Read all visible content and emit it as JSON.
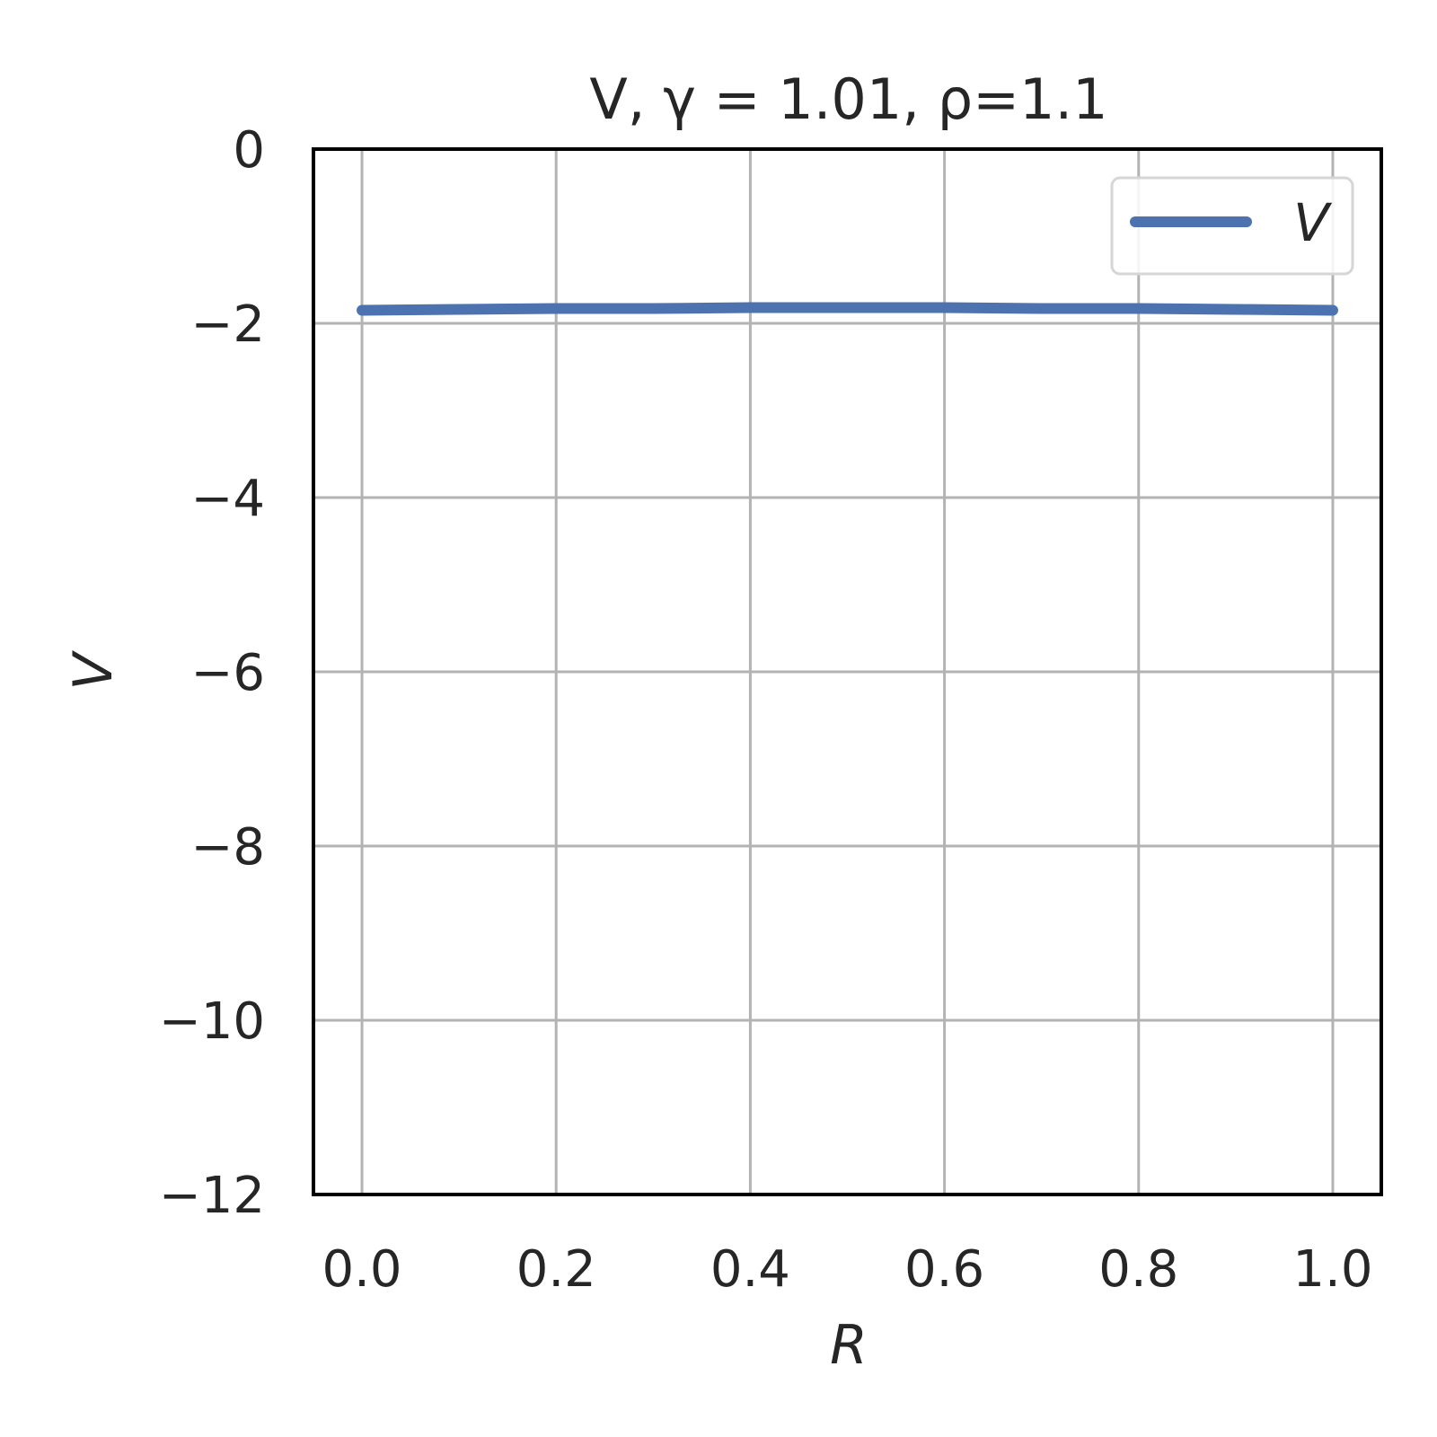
{
  "chart_data": {
    "type": "line",
    "title": "V, γ = 1.01, ρ=1.1",
    "xlabel": "R",
    "ylabel": "V",
    "xlim": [
      -0.05,
      1.05
    ],
    "ylim": [
      -12,
      0
    ],
    "xticks": [
      0.0,
      0.2,
      0.4,
      0.6,
      0.8,
      1.0
    ],
    "xtick_labels": [
      "0.0",
      "0.2",
      "0.4",
      "0.6",
      "0.8",
      "1.0"
    ],
    "yticks": [
      0,
      -2,
      -4,
      -6,
      -8,
      -10,
      -12
    ],
    "ytick_labels": [
      "0",
      "−2",
      "−4",
      "−6",
      "−8",
      "−10",
      "−12"
    ],
    "grid": true,
    "legend_position": "top-right",
    "series": [
      {
        "name": "V",
        "color": "#4c72b0",
        "x": [
          0.0,
          0.1,
          0.2,
          0.3,
          0.4,
          0.5,
          0.6,
          0.7,
          0.8,
          0.9,
          1.0
        ],
        "y": [
          -1.85,
          -1.84,
          -1.83,
          -1.83,
          -1.82,
          -1.82,
          -1.82,
          -1.83,
          -1.83,
          -1.84,
          -1.85
        ]
      }
    ]
  }
}
